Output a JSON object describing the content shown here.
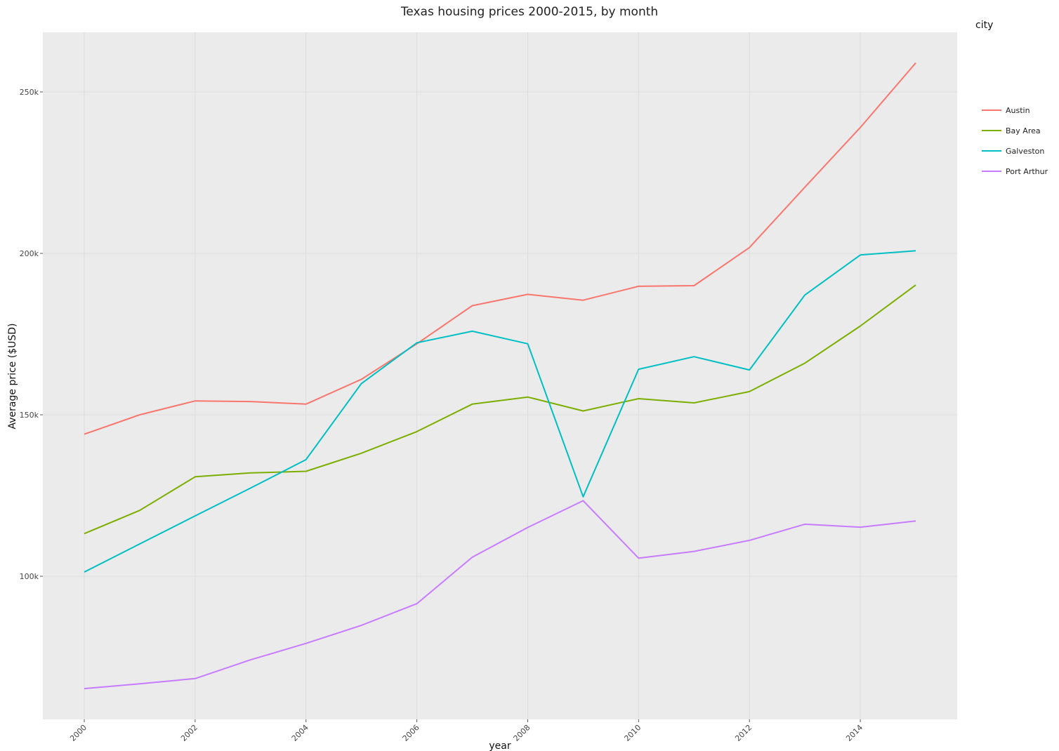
{
  "chart_data": {
    "type": "line",
    "title": "Texas housing prices 2000-2015, by month",
    "xlabel": "year",
    "ylabel": "Average price ($USD)",
    "xlim": [
      2000,
      2015
    ],
    "ylim": [
      60000,
      260000
    ],
    "x_ticks": [
      2000,
      2002,
      2004,
      2006,
      2008,
      2010,
      2012,
      2014
    ],
    "x_tick_labels": [
      "2000",
      "2002",
      "2004",
      "2006",
      "2008",
      "2010",
      "2012",
      "2014"
    ],
    "y_ticks": [
      100000,
      150000,
      200000,
      250000
    ],
    "y_tick_labels": [
      "100k",
      "150k",
      "200k",
      "250k"
    ],
    "grid": true,
    "legend_title": "city",
    "legend_position": "right",
    "x": [
      2000,
      2001,
      2002,
      2003,
      2004,
      2005,
      2006,
      2007,
      2008,
      2009,
      2010,
      2011,
      2012,
      2013,
      2014,
      2015
    ],
    "series": [
      {
        "name": "Austin",
        "color": "#f8766d",
        "values": [
          144000,
          150000,
          154300,
          154100,
          153300,
          161000,
          172000,
          183800,
          187300,
          185500,
          189800,
          190000,
          201800,
          220500,
          239000,
          259000
        ]
      },
      {
        "name": "Bay Area",
        "color": "#7cae00",
        "values": [
          113200,
          120400,
          130800,
          132000,
          132500,
          138100,
          144800,
          153300,
          155500,
          151200,
          155000,
          153700,
          157200,
          166000,
          177500,
          190200
        ]
      },
      {
        "name": "Galveston",
        "color": "#00bfc4",
        "values": [
          101300,
          110000,
          118700,
          127300,
          136100,
          159700,
          172300,
          175900,
          172000,
          124600,
          164100,
          168000,
          163900,
          187100,
          199500,
          200800
        ]
      },
      {
        "name": "Port Arthur",
        "color": "#c77cff",
        "values": [
          65200,
          66700,
          68300,
          74100,
          79200,
          84800,
          91500,
          105900,
          115100,
          123400,
          105600,
          107700,
          111100,
          116100,
          115200,
          117100
        ]
      }
    ]
  }
}
